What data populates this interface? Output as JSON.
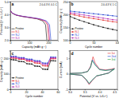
{
  "chart_data": [
    {
      "type": "line",
      "title": "a",
      "annotation": "2.0-4.3 V, 0.1 C",
      "x_label": "Capacity (mAh g⁻¹)",
      "y_label": "Potential (V vs. Li/Li⁺)",
      "legend": "lower left",
      "xlim": [
        0,
        250
      ],
      "xticks": [
        0,
        100,
        200
      ],
      "ylim": [
        2.0,
        5.0
      ],
      "yticks": [
        {
          "value": 2.0,
          "label": "2.0"
        },
        {
          "value": 3.0,
          "label": "3.0"
        },
        {
          "value": 4.0,
          "label": "4.0"
        },
        {
          "value": 5.0,
          "label": "5.0"
        }
      ],
      "series": [
        {
          "name": "Pristine",
          "color": "#000000",
          "x": [
            0,
            10,
            30,
            60,
            100,
            140,
            170,
            185,
            192
          ],
          "values": [
            4.3,
            4.1,
            3.95,
            3.85,
            3.76,
            3.66,
            3.5,
            3.2,
            2.0
          ]
        },
        {
          "name": "N-1",
          "color": "#e02020",
          "x": [
            0,
            10,
            32,
            64,
            105,
            147,
            180,
            195,
            202
          ],
          "values": [
            4.3,
            4.1,
            3.95,
            3.85,
            3.76,
            3.66,
            3.5,
            3.2,
            2.0
          ]
        },
        {
          "name": "N-2",
          "color": "#1f3fd0",
          "x": [
            0,
            11,
            34,
            68,
            112,
            156,
            190,
            206,
            213
          ],
          "values": [
            4.3,
            4.1,
            3.95,
            3.85,
            3.76,
            3.66,
            3.5,
            3.2,
            2.0
          ]
        },
        {
          "name": "N-3",
          "color": "#b020b0",
          "x": [
            0,
            10,
            33,
            66,
            108,
            152,
            185,
            200,
            207
          ],
          "values": [
            4.3,
            4.1,
            3.95,
            3.85,
            3.76,
            3.66,
            3.5,
            3.2,
            2.0
          ]
        }
      ]
    },
    {
      "type": "line",
      "title": "b",
      "annotation": "2.0-4.3 V, 1 C",
      "x_label": "Cycle number",
      "y_label": "Capacity (mAh g⁻¹)",
      "legend": "lower left",
      "xlim": [
        0,
        100
      ],
      "xticks": [
        0,
        50,
        100
      ],
      "ylim": [
        100,
        250
      ],
      "yticks": [
        100,
        150,
        200,
        250
      ],
      "series": [
        {
          "name": "Pristine",
          "color": "#000000",
          "marker": "circle",
          "x": [
            1,
            10,
            20,
            30,
            40,
            50,
            60,
            70,
            80,
            90,
            100
          ],
          "values": [
            192,
            185,
            178,
            172,
            166,
            160,
            155,
            150,
            146,
            142,
            138
          ]
        },
        {
          "name": "N-1",
          "color": "#e02020",
          "marker": "circle",
          "x": [
            1,
            10,
            20,
            30,
            40,
            50,
            60,
            70,
            80,
            90,
            100
          ],
          "values": [
            202,
            198,
            194,
            190,
            187,
            184,
            181,
            178,
            175,
            172,
            170
          ]
        },
        {
          "name": "N-2",
          "color": "#1f3fd0",
          "marker": "circle",
          "x": [
            1,
            10,
            20,
            30,
            40,
            50,
            60,
            70,
            80,
            90,
            100
          ],
          "values": [
            213,
            211,
            209,
            207,
            205,
            203,
            201,
            199,
            197,
            195,
            193
          ]
        },
        {
          "name": "N-3",
          "color": "#b020b0",
          "marker": "circle",
          "x": [
            1,
            10,
            20,
            30,
            40,
            50,
            60,
            70,
            80,
            90,
            100
          ],
          "values": [
            207,
            204,
            201,
            198,
            195,
            192,
            189,
            186,
            183,
            180,
            178
          ]
        }
      ]
    },
    {
      "type": "line",
      "title": "c",
      "x_label": "Cycle number",
      "y_label": "Capacity (mAh g⁻¹)",
      "legend": "lower left",
      "xlim": [
        0,
        60
      ],
      "xticks": [
        0,
        20,
        40,
        60
      ],
      "ylim": [
        0,
        250
      ],
      "yticks": [
        0,
        100,
        200
      ],
      "series": [
        {
          "name": "Pristine",
          "color": "#000000",
          "marker": "circle",
          "x": [
            1,
            4,
            7,
            11,
            14,
            17,
            21,
            24,
            27,
            31,
            34,
            37,
            41,
            44,
            47,
            51,
            54,
            57
          ],
          "values": [
            192,
            190,
            189,
            180,
            179,
            178,
            165,
            164,
            163,
            150,
            149,
            148,
            130,
            129,
            128,
            185,
            184,
            183
          ]
        },
        {
          "name": "N-1",
          "color": "#e02020",
          "marker": "circle",
          "x": [
            1,
            4,
            7,
            11,
            14,
            17,
            21,
            24,
            27,
            31,
            34,
            37,
            41,
            44,
            47,
            51,
            54,
            57
          ],
          "values": [
            202,
            201,
            200,
            194,
            193,
            193,
            182,
            181,
            181,
            170,
            169,
            168,
            152,
            151,
            150,
            198,
            197,
            197
          ]
        },
        {
          "name": "N-2",
          "color": "#1f3fd0",
          "marker": "circle",
          "x": [
            1,
            4,
            7,
            11,
            14,
            17,
            21,
            24,
            27,
            31,
            34,
            37,
            41,
            44,
            47,
            51,
            54,
            57
          ],
          "values": [
            213,
            212,
            212,
            205,
            204,
            204,
            195,
            194,
            194,
            185,
            184,
            184,
            170,
            169,
            169,
            208,
            207,
            207
          ]
        },
        {
          "name": "N-3",
          "color": "#b020b0",
          "marker": "circle",
          "x": [
            1,
            4,
            7,
            11,
            14,
            17,
            21,
            24,
            27,
            31,
            34,
            37,
            41,
            44,
            47,
            51,
            54,
            57
          ],
          "values": [
            207,
            206,
            206,
            200,
            199,
            199,
            189,
            188,
            188,
            178,
            177,
            177,
            162,
            161,
            160,
            203,
            202,
            202
          ]
        }
      ]
    },
    {
      "type": "line",
      "title": "d",
      "x_label": "Potential (V vs. Li/Li⁺)",
      "y_label": "Current (mA)",
      "legend": "upper right",
      "xlim": [
        3.0,
        4.6
      ],
      "xticks": [
        {
          "value": 3.0,
          "label": "3.0"
        },
        {
          "value": 3.5,
          "label": "3.5"
        },
        {
          "value": 4.0,
          "label": "4.0"
        },
        {
          "value": 4.5,
          "label": "4.5"
        }
      ],
      "ylim": [
        -1,
        1.5
      ],
      "yticks": [
        -1,
        0,
        1
      ],
      "series": [
        {
          "name": "1st",
          "color": "#e02020",
          "x": [
            3.0,
            3.4,
            3.6,
            3.7,
            3.78,
            3.85,
            4.0,
            4.2,
            4.4,
            4.5,
            4.3,
            4.1,
            3.9,
            3.75,
            3.65,
            3.55,
            3.4,
            3.0
          ],
          "values": [
            0.02,
            0.05,
            0.15,
            0.5,
            1.1,
            0.7,
            0.3,
            0.25,
            0.3,
            0.35,
            0.05,
            -0.05,
            -0.15,
            -0.45,
            -0.7,
            -0.4,
            -0.1,
            -0.02
          ]
        },
        {
          "name": "2nd",
          "color": "#1f3fd0",
          "x": [
            3.0,
            3.4,
            3.6,
            3.7,
            3.76,
            3.85,
            4.0,
            4.2,
            4.4,
            4.5,
            4.3,
            4.1,
            3.9,
            3.75,
            3.65,
            3.55,
            3.4,
            3.0
          ],
          "values": [
            0.02,
            0.05,
            0.15,
            0.45,
            0.9,
            0.6,
            0.28,
            0.22,
            0.27,
            0.32,
            0.05,
            -0.05,
            -0.14,
            -0.42,
            -0.65,
            -0.38,
            -0.1,
            -0.02
          ]
        },
        {
          "name": "3rd",
          "color": "#20a040",
          "x": [
            3.0,
            3.4,
            3.6,
            3.7,
            3.75,
            3.85,
            4.0,
            4.2,
            4.4,
            4.5,
            4.3,
            4.1,
            3.9,
            3.75,
            3.65,
            3.55,
            3.4,
            3.0
          ],
          "values": [
            0.02,
            0.05,
            0.14,
            0.42,
            0.85,
            0.56,
            0.26,
            0.21,
            0.26,
            0.3,
            0.04,
            -0.05,
            -0.13,
            -0.4,
            -0.62,
            -0.36,
            -0.09,
            -0.02
          ]
        }
      ]
    }
  ]
}
